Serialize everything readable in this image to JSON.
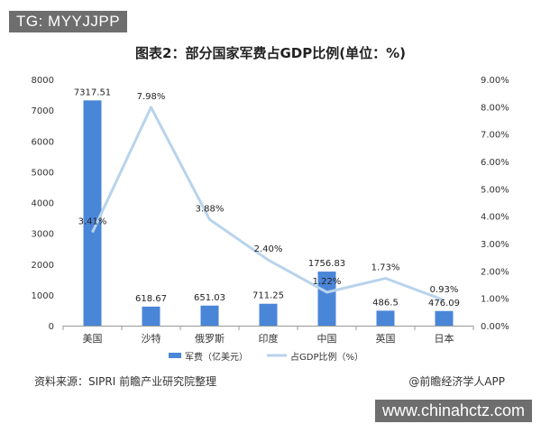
{
  "overlay_top": "TG: MYYJJPP",
  "overlay_bottom": "www.chinahctz.com",
  "source": "资料来源：SIPRI 前瞻产业研究院整理",
  "credit": "@前瞻经济学人APP",
  "colors": {
    "bar": "#4a86d8",
    "line": "#b8d3ec",
    "axis": "#999999"
  },
  "chart_data": {
    "type": "bar",
    "title": "图表2：部分国家军费占GDP比例(单位：%)",
    "categories": [
      "美国",
      "沙特",
      "俄罗斯",
      "印度",
      "中国",
      "英国",
      "日本"
    ],
    "series": [
      {
        "name": "军费（亿美元）",
        "type": "bar",
        "axis": "left",
        "values": [
          7317.51,
          618.67,
          651.03,
          711.25,
          1756.83,
          486.5,
          476.09
        ],
        "labels": [
          "7317.51",
          "618.67",
          "651.03",
          "711.25",
          "1756.83",
          "486.5",
          "476.09"
        ]
      },
      {
        "name": "占GDP比例（%）",
        "type": "line",
        "axis": "right",
        "values": [
          3.41,
          7.98,
          3.88,
          2.4,
          1.22,
          1.73,
          0.93
        ],
        "labels": [
          "3.41%",
          "7.98%",
          "3.88%",
          "2.40%",
          "1.22%",
          "1.73%",
          "0.93%"
        ]
      }
    ],
    "y_left": {
      "min": 0,
      "max": 8000,
      "ticks": [
        "0",
        "1000",
        "2000",
        "3000",
        "4000",
        "5000",
        "6000",
        "7000",
        "8000"
      ]
    },
    "y_right": {
      "min": 0,
      "max": 9,
      "ticks": [
        "0.00%",
        "1.00%",
        "2.00%",
        "3.00%",
        "4.00%",
        "5.00%",
        "6.00%",
        "7.00%",
        "8.00%",
        "9.00%"
      ]
    },
    "grid": false,
    "legend_position": "bottom"
  }
}
